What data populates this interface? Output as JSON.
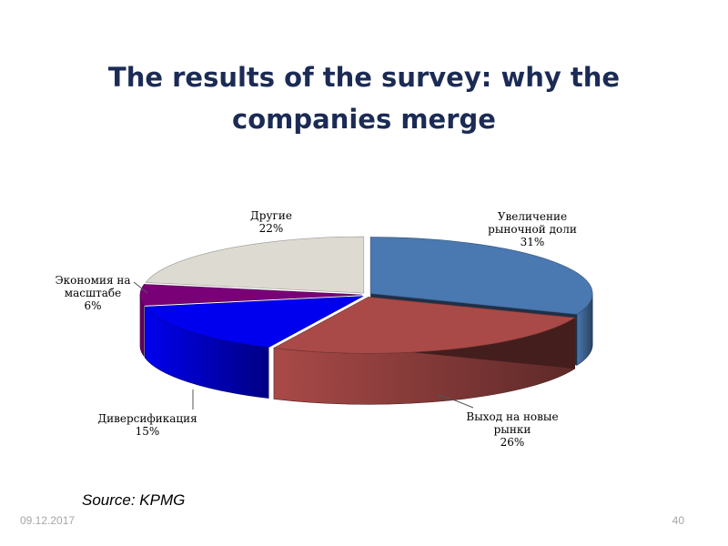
{
  "slide": {
    "title_line1": "The results of the survey: why the",
    "title_line2": "companies merge",
    "source": "Source: KPMG",
    "date": "09.12.2017",
    "page_number": "40"
  },
  "chart_data": {
    "type": "pie",
    "style": "3d-exploded",
    "title": "",
    "slices": [
      {
        "label_lines": [
          "Увеличение",
          "рыночной доли"
        ],
        "value": 31,
        "value_label": "31%",
        "color": "#4a78b0"
      },
      {
        "label_lines": [
          "Выход на новые",
          "рынки"
        ],
        "value": 26,
        "value_label": "26%",
        "color": "#a94a48"
      },
      {
        "label_lines": [
          "Диверсификация"
        ],
        "value": 15,
        "value_label": "15%",
        "color": "#0000ee"
      },
      {
        "label_lines": [
          "Экономия на",
          "масштабе"
        ],
        "value": 6,
        "value_label": "6%",
        "color": "#7a0078"
      },
      {
        "label_lines": [
          "Другие"
        ],
        "value": 22,
        "value_label": "22%",
        "color": "#dddad2"
      }
    ],
    "legend": "none",
    "labels_outside": true
  }
}
